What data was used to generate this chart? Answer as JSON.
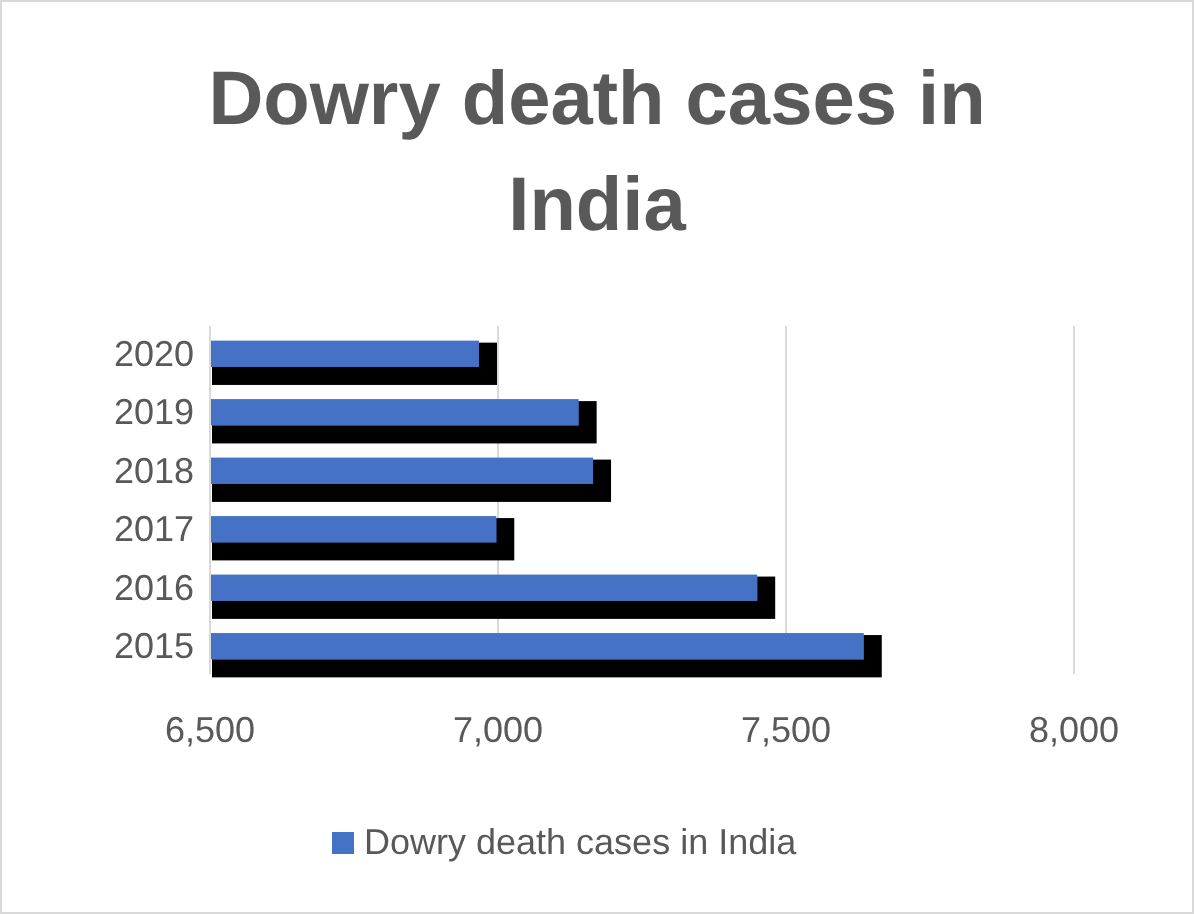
{
  "chart_data": {
    "type": "bar",
    "orientation": "horizontal",
    "title": "Dowry death cases in India",
    "categories": [
      "2020",
      "2019",
      "2018",
      "2017",
      "2016",
      "2015"
    ],
    "series": [
      {
        "name": "Dowry death cases in India",
        "color": "#4472c4",
        "values": [
          6967,
          7140,
          7165,
          6997,
          7450,
          7635
        ]
      }
    ],
    "xlim": [
      6500,
      8000
    ],
    "xticks": [
      {
        "value": 6500,
        "label": "6,500"
      },
      {
        "value": 7000,
        "label": "7,000"
      },
      {
        "value": 7500,
        "label": "7,500"
      },
      {
        "value": 8000,
        "label": "8,000"
      }
    ],
    "grid": "x",
    "legend": "bottom"
  }
}
